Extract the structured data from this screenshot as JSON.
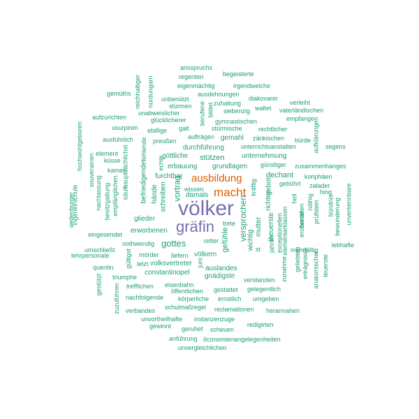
{
  "colors": {
    "small": "#1b9e77",
    "medium": "#d95f02",
    "large": "#7570b3",
    "background": "#ffffff"
  },
  "words": [
    {
      "text": "völker",
      "weight": 30,
      "color": "#7570b3"
    },
    {
      "text": "gräfin",
      "weight": 22,
      "color": "#7570b3"
    },
    {
      "text": "macht",
      "weight": 17,
      "color": "#d95f02"
    },
    {
      "text": "ausbildung",
      "weight": 15,
      "color": "#d95f02"
    },
    {
      "text": "gottes",
      "weight": 13,
      "color": "#1b9e77"
    },
    {
      "text": "versprochen",
      "weight": 12,
      "color": "#1b9e77"
    },
    {
      "text": "vortrag",
      "weight": 12,
      "color": "#1b9e77"
    },
    {
      "text": "gefühle",
      "weight": 11,
      "color": "#1b9e77"
    },
    {
      "text": "dechant",
      "weight": 11,
      "color": "#1b9e77"
    },
    {
      "text": "stützen",
      "weight": 11,
      "color": "#1b9e77"
    },
    {
      "text": "damals",
      "weight": 10,
      "color": "#1b9e77"
    },
    {
      "text": "auslandes",
      "weight": 10,
      "color": "#1b9e77"
    },
    {
      "text": "constantinopel",
      "weight": 10,
      "color": "#1b9e77"
    },
    {
      "text": "glieder",
      "weight": 10,
      "color": "#1b9e77"
    },
    {
      "text": "theuerste",
      "weight": 10,
      "color": "#1b9e77"
    },
    {
      "text": "richten",
      "weight": 10,
      "color": "#1b9e77"
    },
    {
      "text": "göttliche",
      "weight": 10,
      "color": "#1b9e77"
    },
    {
      "text": "gemahl",
      "weight": 10,
      "color": "#1b9e77"
    },
    {
      "text": "durchführung",
      "weight": 10,
      "color": "#1b9e77"
    },
    {
      "text": "grundlagen",
      "weight": 10,
      "color": "#1b9e77"
    },
    {
      "text": "erbauung",
      "weight": 10,
      "color": "#1b9e77"
    },
    {
      "text": "furchtbar",
      "weight": 10,
      "color": "#1b9e77"
    },
    {
      "text": "unternehmung",
      "weight": 10,
      "color": "#1b9e77"
    },
    {
      "text": "schreiben",
      "weight": 10,
      "color": "#1b9e77"
    },
    {
      "text": "hände",
      "weight": 10,
      "color": "#1b9e77"
    },
    {
      "text": "befriedigende",
      "weight": 10,
      "color": "#1b9e77"
    },
    {
      "text": "völkern",
      "weight": 10,
      "color": "#1b9e77"
    },
    {
      "text": "volksvertreter",
      "weight": 10,
      "color": "#1b9e77"
    },
    {
      "text": "erworbenen",
      "weight": 10,
      "color": "#1b9e77"
    },
    {
      "text": "gnädigste",
      "weight": 10,
      "color": "#1b9e77"
    },
    {
      "text": "mutter",
      "weight": 10,
      "color": "#1b9e77"
    },
    {
      "text": "wichtig",
      "weight": 10,
      "color": "#1b9e77"
    },
    {
      "text": "gebot",
      "weight": 10,
      "color": "#1b9e77"
    },
    {
      "text": "ansspruchs",
      "weight": 9,
      "color": "#1b9e77"
    },
    {
      "text": "regenten",
      "weight": 9,
      "color": "#1b9e77"
    },
    {
      "text": "begeisterte",
      "weight": 9,
      "color": "#1b9e77"
    },
    {
      "text": "eigenmächtig",
      "weight": 9,
      "color": "#1b9e77"
    },
    {
      "text": "irgendwelche",
      "weight": 9,
      "color": "#1b9e77"
    },
    {
      "text": "ausdehnungen",
      "weight": 9,
      "color": "#1b9e77"
    },
    {
      "text": "diakovarer",
      "weight": 9,
      "color": "#1b9e77"
    },
    {
      "text": "gemüths",
      "weight": 9,
      "color": "#1b9e77"
    },
    {
      "text": "unbenützt",
      "weight": 9,
      "color": "#1b9e77"
    },
    {
      "text": "zuhaltung",
      "weight": 9,
      "color": "#1b9e77"
    },
    {
      "text": "verleiht",
      "weight": 9,
      "color": "#1b9e77"
    },
    {
      "text": "stürmen",
      "weight": 9,
      "color": "#1b9e77"
    },
    {
      "text": "siebenzig",
      "weight": 9,
      "color": "#1b9e77"
    },
    {
      "text": "waltet",
      "weight": 9,
      "color": "#1b9e77"
    },
    {
      "text": "vaterländischen",
      "weight": 9,
      "color": "#1b9e77"
    },
    {
      "text": "unabweislicher",
      "weight": 9,
      "color": "#1b9e77"
    },
    {
      "text": "aufzurichten",
      "weight": 9,
      "color": "#1b9e77"
    },
    {
      "text": "glücklicherer",
      "weight": 9,
      "color": "#1b9e77"
    },
    {
      "text": "gymnastischen",
      "weight": 9,
      "color": "#1b9e77"
    },
    {
      "text": "empfange",
      "weight": 9,
      "color": "#1b9e77"
    },
    {
      "text": "usurpiren",
      "weight": 9,
      "color": "#1b9e77"
    },
    {
      "text": "ebillige",
      "weight": 9,
      "color": "#1b9e77"
    },
    {
      "text": "galt",
      "weight": 9,
      "color": "#1b9e77"
    },
    {
      "text": "stürmische",
      "weight": 9,
      "color": "#1b9e77"
    },
    {
      "text": "rechtlicher",
      "weight": 9,
      "color": "#1b9e77"
    },
    {
      "text": "ausführlich",
      "weight": 9,
      "color": "#1b9e77"
    },
    {
      "text": "preußen",
      "weight": 9,
      "color": "#1b9e77"
    },
    {
      "text": "aufträgen",
      "weight": 9,
      "color": "#1b9e77"
    },
    {
      "text": "zänkischen",
      "weight": 9,
      "color": "#1b9e77"
    },
    {
      "text": "bürde",
      "weight": 9,
      "color": "#1b9e77"
    },
    {
      "text": "unterrichtsanstalten",
      "weight": 9,
      "color": "#1b9e77"
    },
    {
      "text": "segens",
      "weight": 9,
      "color": "#1b9e77"
    },
    {
      "text": "element",
      "weight": 9,
      "color": "#1b9e77"
    },
    {
      "text": "küsse",
      "weight": 9,
      "color": "#1b9e77"
    },
    {
      "text": "kamen",
      "weight": 9,
      "color": "#1b9e77"
    },
    {
      "text": "günstiger",
      "weight": 9,
      "color": "#1b9e77"
    },
    {
      "text": "zusammenhanges",
      "weight": 9,
      "color": "#1b9e77"
    },
    {
      "text": "gebührt",
      "weight": 9,
      "color": "#1b9e77"
    },
    {
      "text": "koriphäen",
      "weight": 9,
      "color": "#1b9e77"
    },
    {
      "text": "zalader",
      "weight": 9,
      "color": "#1b9e77"
    },
    {
      "text": "hing",
      "weight": 9,
      "color": "#1b9e77"
    },
    {
      "text": "wissen",
      "weight": 9,
      "color": "#1b9e77"
    },
    {
      "text": "eingesendet",
      "weight": 9,
      "color": "#1b9e77"
    },
    {
      "text": "nothwendig",
      "weight": 9,
      "color": "#1b9e77"
    },
    {
      "text": "trete",
      "weight": 9,
      "color": "#1b9e77"
    },
    {
      "text": "retter",
      "weight": 9,
      "color": "#1b9e77"
    },
    {
      "text": "umschließt",
      "weight": 9,
      "color": "#1b9e77"
    },
    {
      "text": "lehrpersonale",
      "weight": 9,
      "color": "#1b9e77"
    },
    {
      "text": "mörder",
      "weight": 9,
      "color": "#1b9e77"
    },
    {
      "text": "liefern",
      "weight": 9,
      "color": "#1b9e77"
    },
    {
      "text": "lebhafte",
      "weight": 9,
      "color": "#1b9e77"
    },
    {
      "text": "mehrfältig",
      "weight": 9,
      "color": "#1b9e77"
    },
    {
      "text": "quentin",
      "weight": 9,
      "color": "#1b9e77"
    },
    {
      "text": "letzt",
      "weight": 9,
      "color": "#1b9e77"
    },
    {
      "text": "st",
      "weight": 9,
      "color": "#1b9e77"
    },
    {
      "text": "triumphe",
      "weight": 9,
      "color": "#1b9e77"
    },
    {
      "text": "verstanden",
      "weight": 9,
      "color": "#1b9e77"
    },
    {
      "text": "trefflichen",
      "weight": 9,
      "color": "#1b9e77"
    },
    {
      "text": "eisenbahn",
      "weight": 9,
      "color": "#1b9e77"
    },
    {
      "text": "gestattet",
      "weight": 9,
      "color": "#1b9e77"
    },
    {
      "text": "gelegentlich",
      "weight": 9,
      "color": "#1b9e77"
    },
    {
      "text": "öffentlichen",
      "weight": 9,
      "color": "#1b9e77"
    },
    {
      "text": "nachfolgende",
      "weight": 9,
      "color": "#1b9e77"
    },
    {
      "text": "körperliche",
      "weight": 9,
      "color": "#1b9e77"
    },
    {
      "text": "ernstlich",
      "weight": 9,
      "color": "#1b9e77"
    },
    {
      "text": "umgeben",
      "weight": 9,
      "color": "#1b9e77"
    },
    {
      "text": "schulmaßregel",
      "weight": 9,
      "color": "#1b9e77"
    },
    {
      "text": "verbandes",
      "weight": 9,
      "color": "#1b9e77"
    },
    {
      "text": "reclamationen",
      "weight": 9,
      "color": "#1b9e77"
    },
    {
      "text": "herannahen",
      "weight": 9,
      "color": "#1b9e77"
    },
    {
      "text": "unvortheilhafte",
      "weight": 9,
      "color": "#1b9e77"
    },
    {
      "text": "instanzenzuge",
      "weight": 9,
      "color": "#1b9e77"
    },
    {
      "text": "gewinnt",
      "weight": 9,
      "color": "#1b9e77"
    },
    {
      "text": "geruhet",
      "weight": 9,
      "color": "#1b9e77"
    },
    {
      "text": "scheuen",
      "weight": 9,
      "color": "#1b9e77"
    },
    {
      "text": "redigirten",
      "weight": 9,
      "color": "#1b9e77"
    },
    {
      "text": "anführung",
      "weight": 9,
      "color": "#1b9e77"
    },
    {
      "text": "öconomienangelegenheiten",
      "weight": 9,
      "color": "#1b9e77"
    },
    {
      "text": "unvergleichlichen",
      "weight": 9,
      "color": "#1b9e77"
    },
    {
      "text": "reichhaltiger",
      "weight": 9,
      "color": "#1b9e77"
    },
    {
      "text": "nordungarn",
      "weight": 9,
      "color": "#1b9e77"
    },
    {
      "text": "hochwohlgeboren",
      "weight": 9,
      "color": "#1b9e77"
    },
    {
      "text": "ingeneirschule",
      "weight": 9,
      "color": "#1b9e77"
    },
    {
      "text": "oedenburger",
      "weight": 9,
      "color": "#1b9e77"
    },
    {
      "text": "souverainen",
      "weight": 9,
      "color": "#1b9e77"
    },
    {
      "text": "nachlassung",
      "weight": 9,
      "color": "#1b9e77"
    },
    {
      "text": "besitzgattung",
      "weight": 9,
      "color": "#1b9e77"
    },
    {
      "text": "empfänglichen",
      "weight": 9,
      "color": "#1b9e77"
    },
    {
      "text": "säule",
      "weight": 9,
      "color": "#1b9e77"
    },
    {
      "text": "hauptsächlichst",
      "weight": 9,
      "color": "#1b9e77"
    },
    {
      "text": "fehlende",
      "weight": 9,
      "color": "#1b9e77"
    },
    {
      "text": "echte",
      "weight": 9,
      "color": "#1b9e77"
    },
    {
      "text": "berufene",
      "weight": 9,
      "color": "#1b9e77"
    },
    {
      "text": "bildet",
      "weight": 9,
      "color": "#1b9e77"
    },
    {
      "text": "aufklärungen",
      "weight": 9,
      "color": "#1b9e77"
    },
    {
      "text": "bündnis",
      "weight": 9,
      "color": "#1b9e77"
    },
    {
      "text": "prüfstein",
      "weight": 9,
      "color": "#1b9e77"
    },
    {
      "text": "bewunderung",
      "weight": 9,
      "color": "#1b9e77"
    },
    {
      "text": "unverkennbare",
      "weight": 9,
      "color": "#1b9e77"
    },
    {
      "text": "nöthig",
      "weight": 9,
      "color": "#1b9e77"
    },
    {
      "text": "heil",
      "weight": 9,
      "color": "#1b9e77"
    },
    {
      "text": "eroberndten",
      "weight": 9,
      "color": "#1b9e77"
    },
    {
      "text": "horde",
      "weight": 9,
      "color": "#1b9e77"
    },
    {
      "text": "elementarklassen",
      "weight": 9,
      "color": "#1b9e77"
    },
    {
      "text": "exceptionellen",
      "weight": 9,
      "color": "#1b9e77"
    },
    {
      "text": "jahren",
      "weight": 9,
      "color": "#1b9e77"
    },
    {
      "text": "kräftig",
      "weight": 9,
      "color": "#1b9e77"
    },
    {
      "text": "erträgnisse",
      "weight": 9,
      "color": "#1b9e77"
    },
    {
      "text": "zunahme",
      "weight": 9,
      "color": "#1b9e77"
    },
    {
      "text": "geliebten",
      "weight": 9,
      "color": "#1b9e77"
    },
    {
      "text": "anatomischer",
      "weight": 9,
      "color": "#1b9e77"
    },
    {
      "text": "teuerste",
      "weight": 9,
      "color": "#1b9e77"
    },
    {
      "text": "gestützt",
      "weight": 9,
      "color": "#1b9e77"
    },
    {
      "text": "zuzuführen",
      "weight": 9,
      "color": "#1b9e77"
    },
    {
      "text": "gültigst",
      "weight": 9,
      "color": "#1b9e77"
    },
    {
      "text": "juni",
      "weight": 9,
      "color": "#1b9e77"
    }
  ]
}
